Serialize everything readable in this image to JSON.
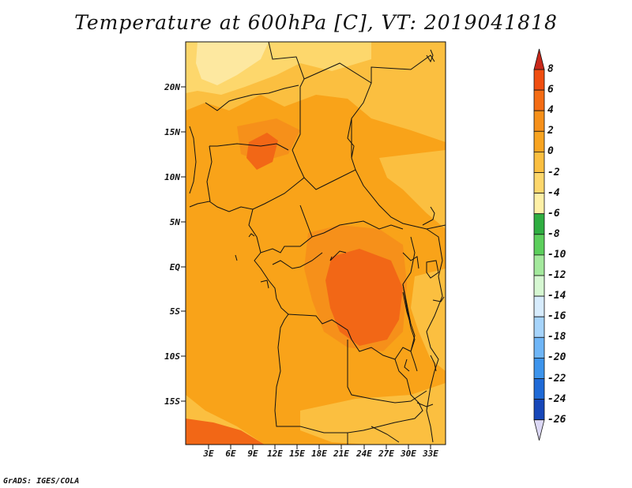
{
  "title": "Temperature at 600hPa [C], VT: 2019041818",
  "credit": "GrADS: IGES/COLA",
  "lat_labels": [
    "20N",
    "15N",
    "10N",
    "5N",
    "EQ",
    "5S",
    "10S",
    "15S"
  ],
  "lon_labels": [
    "3E",
    "6E",
    "9E",
    "12E",
    "15E",
    "18E",
    "21E",
    "24E",
    "27E",
    "30E",
    "33E"
  ],
  "colorbar": {
    "levels": [
      "8",
      "6",
      "4",
      "2",
      "0",
      "-2",
      "-4",
      "-6",
      "-8",
      "-10",
      "-12",
      "-14",
      "-16",
      "-18",
      "-20",
      "-22",
      "-24",
      "-26"
    ],
    "colors": [
      "#e8300c",
      "#f04e10",
      "#f46c14",
      "#f6901a",
      "#f8a421",
      "#fbbf40",
      "#fdd76c",
      "#fef0a6",
      "#2fae41",
      "#5ccf5c",
      "#a4e99d",
      "#d6f7d2",
      "#d7ecfd",
      "#a6d4fb",
      "#6fb6f7",
      "#3d94ec",
      "#1f6ad7",
      "#1747b9",
      "#12329b",
      "#0d1a6e"
    ],
    "top_arrow_color": "#c8281a",
    "bottom_arrow_color": "#dcd8f5"
  },
  "map_colors": {
    "base": "#f9a319",
    "warm4": "#f6901a",
    "warm6": "#f26716",
    "cool2": "#fbbf40",
    "cool0": "#fdd76c",
    "coolneg2": "#fde8a0"
  }
}
